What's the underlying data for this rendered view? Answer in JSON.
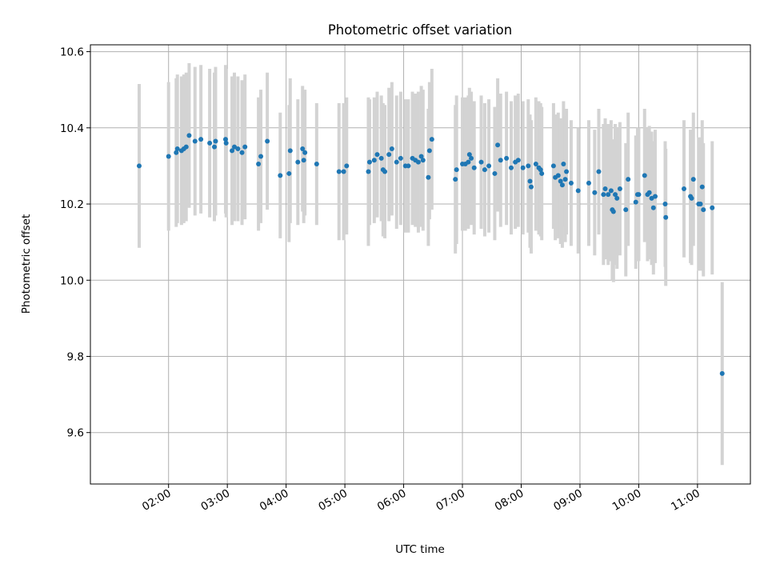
{
  "chart_data": {
    "type": "scatter",
    "title": "Photometric offset variation",
    "xlabel": "UTC time",
    "ylabel": "Photometric offset",
    "x_unit": "hours (UTC)",
    "xlim": [
      0.67,
      11.9
    ],
    "ylim": [
      9.465,
      10.618
    ],
    "grid": true,
    "legend": "none",
    "colors": {
      "point": "#1f77b4",
      "errorbar": "#d3d3d3",
      "grid": "#b0b0b0"
    },
    "xticks": [
      {
        "value": 2,
        "label": "02:00"
      },
      {
        "value": 3,
        "label": "03:00"
      },
      {
        "value": 4,
        "label": "04:00"
      },
      {
        "value": 5,
        "label": "05:00"
      },
      {
        "value": 6,
        "label": "06:00"
      },
      {
        "value": 7,
        "label": "07:00"
      },
      {
        "value": 8,
        "label": "08:00"
      },
      {
        "value": 9,
        "label": "09:00"
      },
      {
        "value": 10,
        "label": "10:00"
      },
      {
        "value": 11,
        "label": "11:00"
      }
    ],
    "yticks": [
      {
        "value": 9.6,
        "label": "9.6"
      },
      {
        "value": 9.8,
        "label": "9.8"
      },
      {
        "value": 10.0,
        "label": "10.0"
      },
      {
        "value": 10.2,
        "label": "10.2"
      },
      {
        "value": 10.4,
        "label": "10.4"
      },
      {
        "value": 10.6,
        "label": "10.6"
      }
    ],
    "series": [
      {
        "name": "offset",
        "points": [
          [
            1.5,
            10.3,
            0.215
          ],
          [
            2.0,
            10.325,
            0.195
          ],
          [
            2.13,
            10.335,
            0.195
          ],
          [
            2.15,
            10.345,
            0.195
          ],
          [
            2.22,
            10.34,
            0.195
          ],
          [
            2.26,
            10.345,
            0.195
          ],
          [
            2.3,
            10.35,
            0.195
          ],
          [
            2.35,
            10.38,
            0.19
          ],
          [
            2.45,
            10.365,
            0.195
          ],
          [
            2.55,
            10.37,
            0.195
          ],
          [
            2.7,
            10.36,
            0.195
          ],
          [
            2.78,
            10.35,
            0.195
          ],
          [
            2.8,
            10.365,
            0.195
          ],
          [
            2.97,
            10.37,
            0.195
          ],
          [
            2.98,
            10.36,
            0.195
          ],
          [
            3.08,
            10.34,
            0.195
          ],
          [
            3.12,
            10.35,
            0.195
          ],
          [
            3.18,
            10.345,
            0.19
          ],
          [
            3.25,
            10.335,
            0.19
          ],
          [
            3.3,
            10.35,
            0.19
          ],
          [
            3.53,
            10.305,
            0.175
          ],
          [
            3.57,
            10.325,
            0.175
          ],
          [
            3.68,
            10.365,
            0.18
          ],
          [
            3.9,
            10.275,
            0.165
          ],
          [
            4.05,
            10.28,
            0.18
          ],
          [
            4.07,
            10.34,
            0.19
          ],
          [
            4.2,
            10.31,
            0.165
          ],
          [
            4.28,
            10.345,
            0.165
          ],
          [
            4.32,
            10.335,
            0.165
          ],
          [
            4.3,
            10.315,
            0.165
          ],
          [
            4.52,
            10.305,
            0.16
          ],
          [
            4.9,
            10.285,
            0.18
          ],
          [
            4.98,
            10.285,
            0.18
          ],
          [
            5.03,
            10.3,
            0.18
          ],
          [
            5.4,
            10.285,
            0.195
          ],
          [
            5.42,
            10.31,
            0.165
          ],
          [
            5.5,
            10.315,
            0.165
          ],
          [
            5.55,
            10.33,
            0.165
          ],
          [
            5.62,
            10.32,
            0.165
          ],
          [
            5.65,
            10.29,
            0.175
          ],
          [
            5.68,
            10.285,
            0.175
          ],
          [
            5.75,
            10.33,
            0.175
          ],
          [
            5.8,
            10.345,
            0.175
          ],
          [
            5.88,
            10.31,
            0.175
          ],
          [
            5.95,
            10.32,
            0.175
          ],
          [
            6.03,
            10.3,
            0.175
          ],
          [
            6.08,
            10.3,
            0.175
          ],
          [
            6.15,
            10.32,
            0.175
          ],
          [
            6.2,
            10.315,
            0.175
          ],
          [
            6.25,
            10.31,
            0.185
          ],
          [
            6.3,
            10.325,
            0.185
          ],
          [
            6.33,
            10.315,
            0.185
          ],
          [
            6.42,
            10.27,
            0.18
          ],
          [
            6.44,
            10.34,
            0.18
          ],
          [
            6.48,
            10.37,
            0.185
          ],
          [
            6.88,
            10.265,
            0.195
          ],
          [
            6.9,
            10.29,
            0.195
          ],
          [
            7.0,
            10.305,
            0.175
          ],
          [
            7.05,
            10.305,
            0.175
          ],
          [
            7.1,
            10.31,
            0.175
          ],
          [
            7.12,
            10.33,
            0.175
          ],
          [
            7.15,
            10.32,
            0.175
          ],
          [
            7.2,
            10.295,
            0.175
          ],
          [
            7.32,
            10.31,
            0.175
          ],
          [
            7.38,
            10.29,
            0.175
          ],
          [
            7.45,
            10.3,
            0.175
          ],
          [
            7.55,
            10.28,
            0.175
          ],
          [
            7.6,
            10.355,
            0.175
          ],
          [
            7.65,
            10.315,
            0.175
          ],
          [
            7.75,
            10.32,
            0.175
          ],
          [
            7.83,
            10.295,
            0.175
          ],
          [
            7.9,
            10.31,
            0.175
          ],
          [
            7.95,
            10.315,
            0.175
          ],
          [
            8.03,
            10.295,
            0.175
          ],
          [
            8.12,
            10.3,
            0.175
          ],
          [
            8.15,
            10.26,
            0.175
          ],
          [
            8.17,
            10.245,
            0.175
          ],
          [
            8.25,
            10.305,
            0.175
          ],
          [
            8.3,
            10.295,
            0.175
          ],
          [
            8.33,
            10.29,
            0.175
          ],
          [
            8.35,
            10.28,
            0.175
          ],
          [
            8.55,
            10.3,
            0.165
          ],
          [
            8.58,
            10.27,
            0.165
          ],
          [
            8.63,
            10.275,
            0.165
          ],
          [
            8.67,
            10.26,
            0.165
          ],
          [
            8.7,
            10.25,
            0.165
          ],
          [
            8.72,
            10.305,
            0.165
          ],
          [
            8.75,
            10.265,
            0.165
          ],
          [
            8.77,
            10.285,
            0.165
          ],
          [
            8.85,
            10.255,
            0.165
          ],
          [
            8.97,
            10.235,
            0.165
          ],
          [
            9.15,
            10.255,
            0.165
          ],
          [
            9.25,
            10.23,
            0.165
          ],
          [
            9.32,
            10.285,
            0.165
          ],
          [
            9.4,
            10.225,
            0.185
          ],
          [
            9.43,
            10.24,
            0.185
          ],
          [
            9.48,
            10.225,
            0.185
          ],
          [
            9.53,
            10.235,
            0.185
          ],
          [
            9.55,
            10.185,
            0.185
          ],
          [
            9.57,
            10.18,
            0.185
          ],
          [
            9.6,
            10.225,
            0.185
          ],
          [
            9.63,
            10.215,
            0.185
          ],
          [
            9.68,
            10.24,
            0.175
          ],
          [
            9.78,
            10.185,
            0.175
          ],
          [
            9.82,
            10.265,
            0.175
          ],
          [
            9.95,
            10.205,
            0.175
          ],
          [
            9.98,
            10.225,
            0.175
          ],
          [
            10.0,
            10.225,
            0.175
          ],
          [
            10.1,
            10.275,
            0.175
          ],
          [
            10.15,
            10.225,
            0.175
          ],
          [
            10.18,
            10.23,
            0.175
          ],
          [
            10.22,
            10.215,
            0.175
          ],
          [
            10.25,
            10.19,
            0.175
          ],
          [
            10.28,
            10.22,
            0.175
          ],
          [
            10.45,
            10.2,
            0.165
          ],
          [
            10.46,
            10.165,
            0.18
          ],
          [
            10.77,
            10.24,
            0.18
          ],
          [
            10.88,
            10.22,
            0.175
          ],
          [
            10.9,
            10.215,
            0.175
          ],
          [
            10.93,
            10.265,
            0.175
          ],
          [
            11.02,
            10.2,
            0.175
          ],
          [
            11.05,
            10.2,
            0.175
          ],
          [
            11.08,
            10.245,
            0.175
          ],
          [
            11.1,
            10.185,
            0.175
          ],
          [
            11.25,
            10.19,
            0.175
          ],
          [
            11.42,
            9.755,
            0.24
          ]
        ]
      }
    ]
  }
}
